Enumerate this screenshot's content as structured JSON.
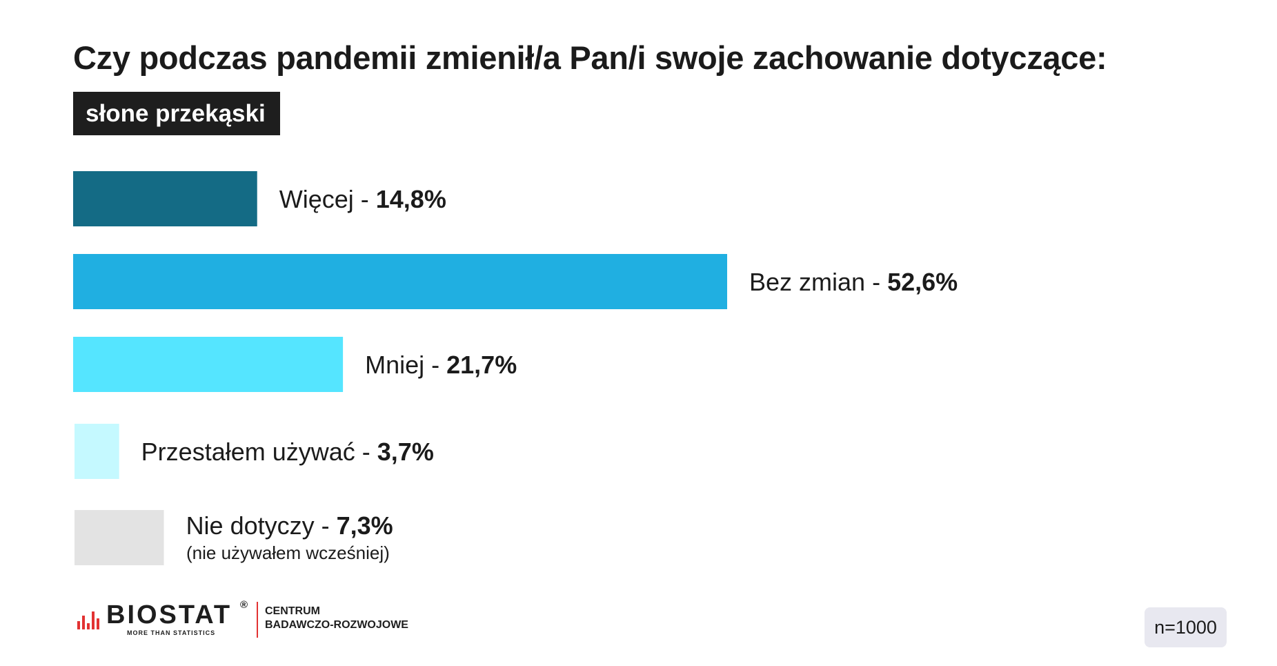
{
  "header": {
    "title": "Czy podczas pandemii zmienił/a Pan/i swoje zachowanie dotyczące:",
    "subtitle": "słone przekąski"
  },
  "chart_data": {
    "type": "bar",
    "orientation": "horizontal",
    "title": "Czy podczas pandemii zmienił/a Pan/i swoje zachowanie dotyczące:",
    "subtitle": "słone przekąski",
    "categories": [
      "Więcej",
      "Bez zmian",
      "Mniej",
      "Przestałem używać",
      "Nie dotyczy"
    ],
    "values": [
      14.8,
      52.6,
      21.7,
      3.7,
      7.3
    ],
    "value_labels": [
      "14,8%",
      "52,6%",
      "21,7%",
      "3,7%",
      "7,3%"
    ],
    "colors": [
      "#146b85",
      "#20afe1",
      "#55e5ff",
      "#c5f9ff",
      "#e3e3e3"
    ],
    "annotations": [
      "(nie używałem wcześniej)"
    ],
    "grid": false,
    "legend": "none",
    "xlabel": "",
    "ylabel": ""
  },
  "footer": {
    "logo_word": "BIOSTAT",
    "logo_reg": "®",
    "logo_tagline": "MORE THAN STATISTICS",
    "center_line1": "CENTRUM",
    "center_line2": "BADAWCZO-ROZWOJOWE",
    "sample_size": "n=1000"
  },
  "colors": {
    "brand_red": "#e23232",
    "tag_background": "#1e1e1e",
    "badge_background": "#e8e8f0"
  }
}
